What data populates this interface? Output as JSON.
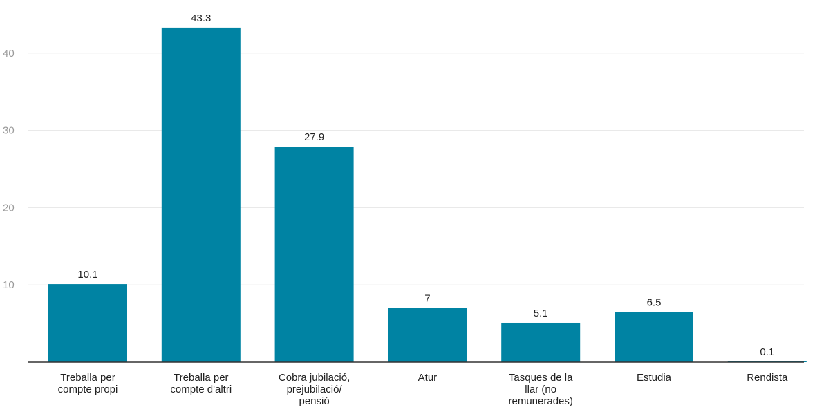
{
  "chart_data": {
    "type": "bar",
    "categories": [
      [
        "Treballa per",
        "compte propi"
      ],
      [
        "Treballa per",
        "compte d'altri"
      ],
      [
        "Cobra jubilació,",
        "prejubilació/",
        "pensió"
      ],
      [
        "Atur"
      ],
      [
        "Tasques de la",
        "llar (no",
        "remunerades)"
      ],
      [
        "Estudia"
      ],
      [
        "Rendista"
      ]
    ],
    "values": [
      10.1,
      43.3,
      27.9,
      7,
      5.1,
      6.5,
      0.1
    ],
    "value_labels": [
      "10.1",
      "43.3",
      "27.9",
      "7",
      "5.1",
      "6.5",
      "0.1"
    ],
    "y_ticks": [
      10,
      20,
      30,
      40
    ],
    "y_tick_labels": [
      "10",
      "20",
      "30",
      "40"
    ],
    "ylim": [
      0,
      47
    ],
    "grid": true,
    "legend": "none",
    "title": "",
    "xlabel": "",
    "ylabel": "",
    "colors": {
      "bar": "#0083a3",
      "grid": "#e6e6e6",
      "axis": "#333333"
    }
  }
}
